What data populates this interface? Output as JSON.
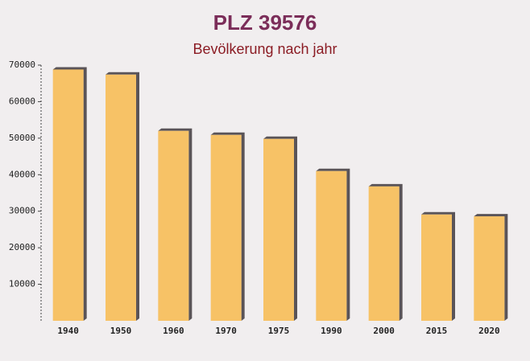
{
  "chart_data": {
    "type": "bar",
    "title": "PLZ 39576",
    "subtitle": "Bevölkerung nach jahr",
    "categories": [
      "1940",
      "1950",
      "1960",
      "1970",
      "1975",
      "1990",
      "2000",
      "2015",
      "2020"
    ],
    "values": [
      68800,
      67400,
      52000,
      50900,
      49800,
      41000,
      36800,
      29100,
      28600
    ],
    "color": "#f7bd57",
    "ylim": [
      0,
      70000
    ],
    "yticks": [
      10000,
      20000,
      30000,
      40000,
      50000,
      60000,
      70000
    ]
  }
}
